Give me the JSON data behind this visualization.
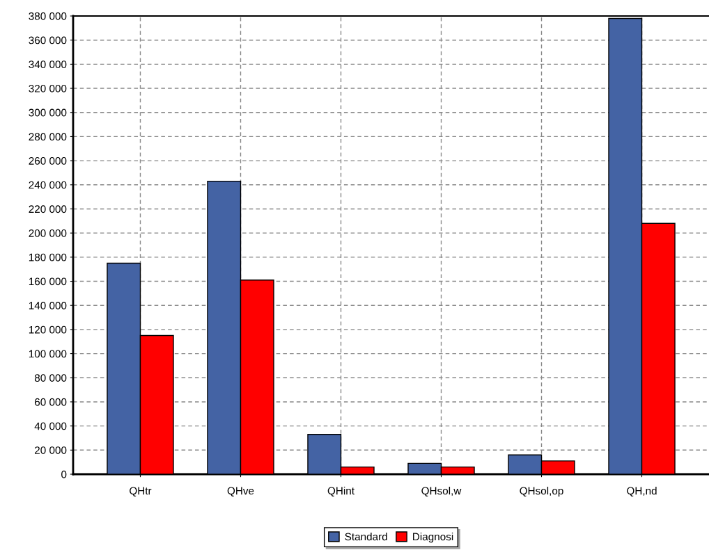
{
  "chart_data": {
    "type": "bar",
    "categories": [
      "QHtr",
      "QHve",
      "QHint",
      "QHsol,w",
      "QHsol,op",
      "QH,nd"
    ],
    "series": [
      {
        "name": "Standard",
        "color": "#4463a4",
        "values": [
          175000,
          243000,
          33000,
          9000,
          16000,
          378000
        ]
      },
      {
        "name": "Diagnosi",
        "color": "#ff0000",
        "values": [
          115000,
          161000,
          6000,
          6000,
          11000,
          208000
        ]
      }
    ],
    "ylim": [
      0,
      380000
    ],
    "yticks": [
      {
        "value": 0,
        "label": "0"
      },
      {
        "value": 20000,
        "label": "20 000"
      },
      {
        "value": 40000,
        "label": "40 000"
      },
      {
        "value": 60000,
        "label": "60 000"
      },
      {
        "value": 80000,
        "label": "80 000"
      },
      {
        "value": 100000,
        "label": "100 000"
      },
      {
        "value": 120000,
        "label": "120 000"
      },
      {
        "value": 140000,
        "label": "140 000"
      },
      {
        "value": 160000,
        "label": "160 000"
      },
      {
        "value": 180000,
        "label": "180 000"
      },
      {
        "value": 200000,
        "label": "200 000"
      },
      {
        "value": 220000,
        "label": "220 000"
      },
      {
        "value": 240000,
        "label": "240 000"
      },
      {
        "value": 260000,
        "label": "260 000"
      },
      {
        "value": 280000,
        "label": "280 000"
      },
      {
        "value": 300000,
        "label": "300 000"
      },
      {
        "value": 320000,
        "label": "320 000"
      },
      {
        "value": 340000,
        "label": "340 000"
      },
      {
        "value": 360000,
        "label": "360 000"
      },
      {
        "value": 380000,
        "label": "380 000"
      }
    ],
    "grid": true,
    "legend": "bottom"
  }
}
